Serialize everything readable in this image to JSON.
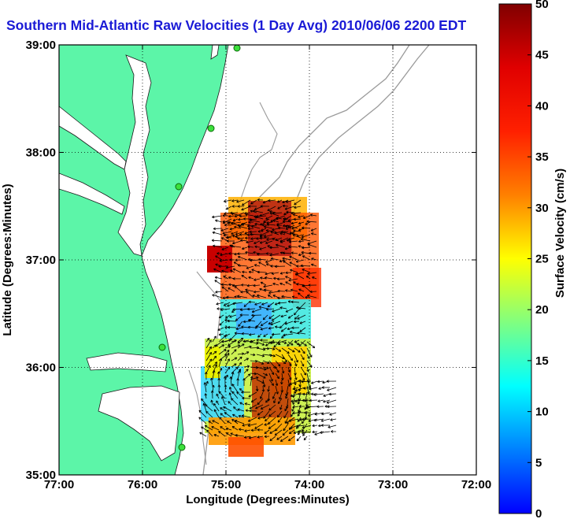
{
  "title": "Southern Mid-Atlantic Raw Velocities (1 Day Avg) 2010/06/06 2200 EDT",
  "map": {
    "x_label": "Longitude (Degrees:Minutes)",
    "y_label": "Latitude (Degrees:Minutes)",
    "lon_range": [
      -77,
      -72
    ],
    "lat_range": [
      35,
      39
    ],
    "lon_ticks": [
      "77:00",
      "76:00",
      "75:00",
      "74:00",
      "73:00",
      "72:00"
    ],
    "lat_ticks": [
      "39:00",
      "38:00",
      "37:00",
      "36:00",
      "35:00"
    ],
    "grid": "dotted",
    "land_color": "#5cf5a8",
    "water_color": "#ffffff",
    "bathymetry_color": "#9a9a9a"
  },
  "colorbar": {
    "label": "Surface Velocity (cm/s)",
    "min": 0,
    "max": 50,
    "ticks": [
      "0",
      "5",
      "10",
      "15",
      "20",
      "25",
      "30",
      "35",
      "40",
      "45",
      "50"
    ],
    "colormap": "jet"
  }
}
